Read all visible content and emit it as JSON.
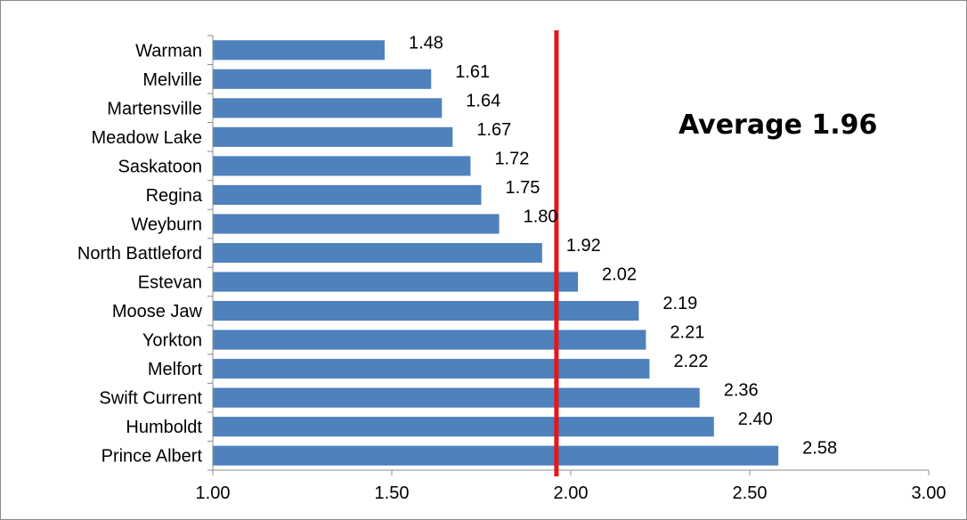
{
  "chart_data": {
    "type": "bar",
    "orientation": "horizontal",
    "categories": [
      "Warman",
      "Melville",
      "Martensville",
      "Meadow Lake",
      "Saskatoon",
      "Regina",
      "Weyburn",
      "North Battleford",
      "Estevan",
      "Moose Jaw",
      "Yorkton",
      "Melfort",
      "Swift Current",
      "Humboldt",
      "Prince Albert"
    ],
    "values": [
      1.48,
      1.61,
      1.64,
      1.67,
      1.72,
      1.75,
      1.8,
      1.92,
      2.02,
      2.19,
      2.21,
      2.22,
      2.36,
      2.4,
      2.58
    ],
    "value_labels": [
      "1.48",
      "1.61",
      "1.64",
      "1.67",
      "1.72",
      "1.75",
      "1.80",
      "1.92",
      "2.02",
      "2.19",
      "2.21",
      "2.22",
      "2.36",
      "2.40",
      "2.58"
    ],
    "xlim": [
      1.0,
      3.0
    ],
    "x_ticks": [
      "1.00",
      "1.50",
      "2.00",
      "2.50",
      "3.00"
    ],
    "x_tick_values": [
      1.0,
      1.5,
      2.0,
      2.5,
      3.0
    ],
    "reference_line": {
      "value": 1.96,
      "color": "#e8161b"
    },
    "annotation": "Average 1.96",
    "bar_color": "#4f81bd",
    "grid": false,
    "title": "",
    "xlabel": "",
    "ylabel": ""
  }
}
